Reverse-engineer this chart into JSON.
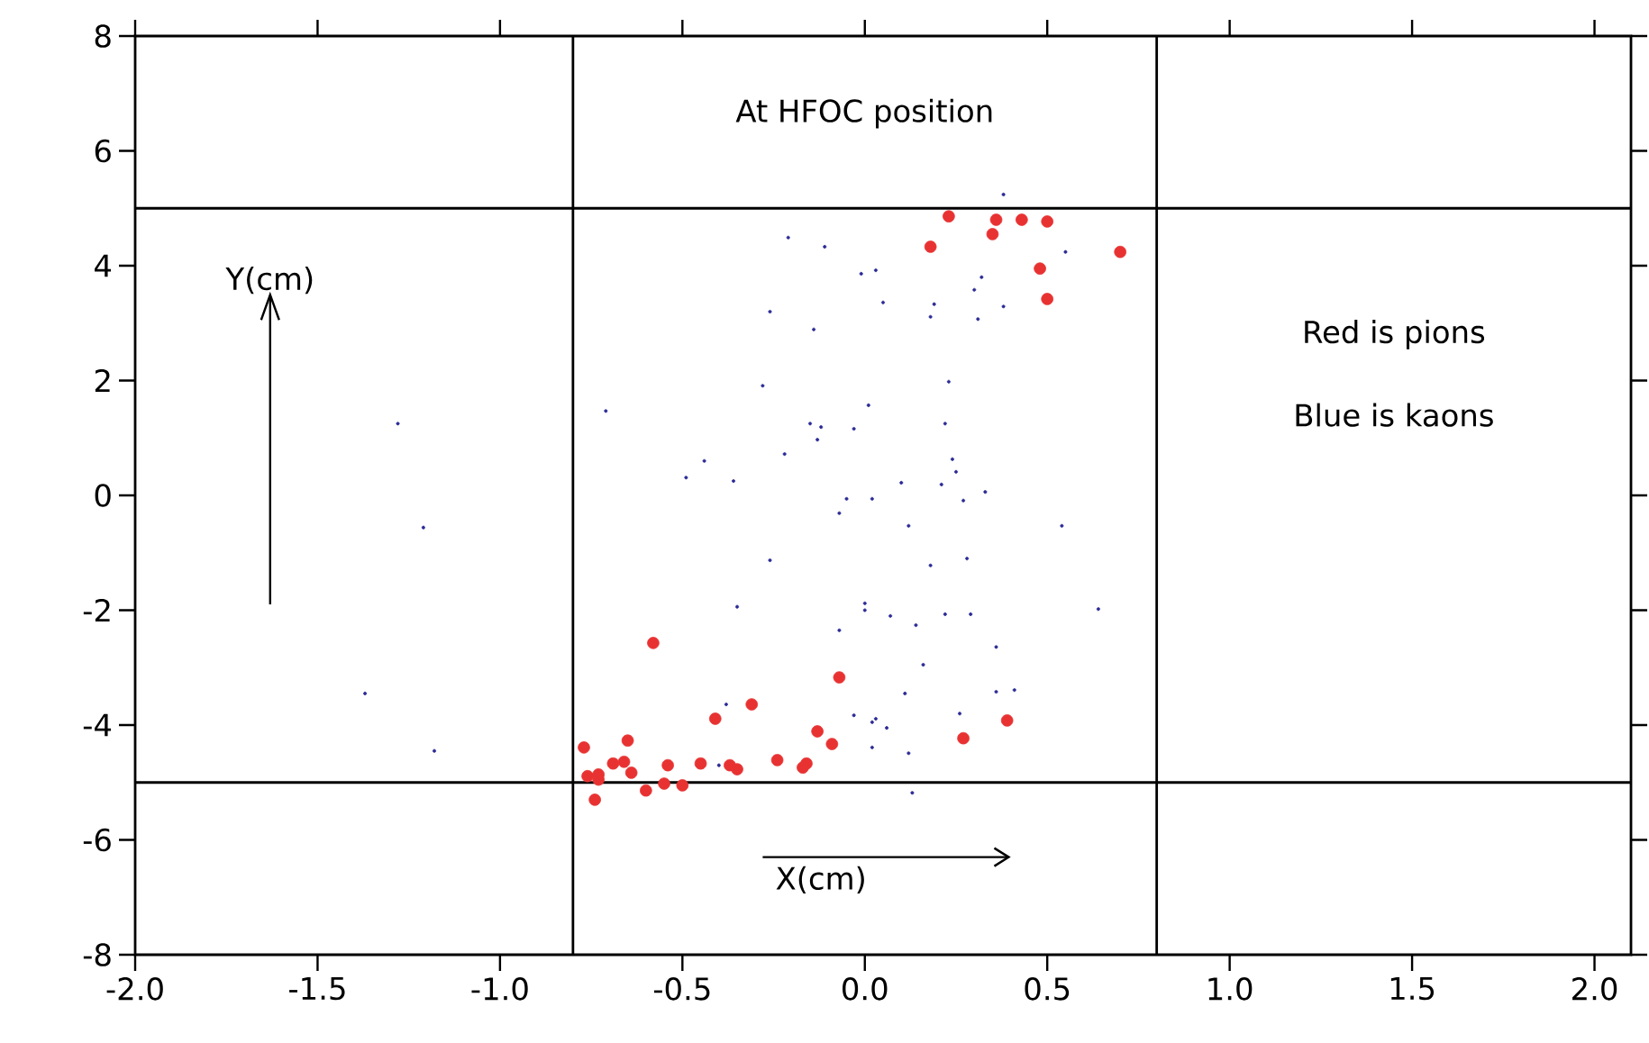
{
  "chart_data": {
    "type": "scatter",
    "title": "At HFOC position",
    "xlabel": "X(cm)",
    "ylabel": "Y(cm)",
    "annotations": [
      "Red is pions",
      "Blue is kaons"
    ],
    "xlim": [
      -2.0,
      2.1
    ],
    "ylim": [
      -8,
      8
    ],
    "xticks": [
      {
        "value": -2.0,
        "label": "-2.0"
      },
      {
        "value": -1.5,
        "label": "-1.5"
      },
      {
        "value": -1.0,
        "label": "-1.0"
      },
      {
        "value": -0.5,
        "label": "-0.5"
      },
      {
        "value": 0.0,
        "label": "0.0"
      },
      {
        "value": 0.5,
        "label": "0.5"
      },
      {
        "value": 1.0,
        "label": "1.0"
      },
      {
        "value": 1.5,
        "label": "1.5"
      },
      {
        "value": 2.0,
        "label": "2.0"
      }
    ],
    "yticks": [
      -8,
      -6,
      -4,
      -2,
      0,
      2,
      4,
      6,
      8
    ],
    "marker": "circle",
    "grid": false,
    "ref_lines": [
      {
        "axis": "x",
        "value": -0.8,
        "color": "#000000"
      },
      {
        "axis": "x",
        "value": 0.8,
        "color": "#000000"
      },
      {
        "axis": "y",
        "value": 5,
        "color": "#000000"
      },
      {
        "axis": "y",
        "value": -5,
        "color": "#000000"
      }
    ],
    "series": [
      {
        "color": "#e83232",
        "x": [
          0.23,
          0.36,
          0.35,
          0.43,
          0.5,
          0.18,
          0.7,
          0.48,
          0.5,
          -0.58,
          -0.07,
          -0.31,
          -0.41,
          0.39,
          -0.13,
          -0.09,
          0.27,
          -0.77,
          -0.65,
          -0.24,
          -0.16,
          -0.17,
          -0.45,
          -0.37,
          -0.35,
          -0.54,
          -0.69,
          -0.66,
          -0.64,
          -0.73,
          -0.76,
          -0.73,
          -0.55,
          -0.5,
          -0.6,
          -0.74
        ],
        "values": [
          4.86,
          4.8,
          4.55,
          4.8,
          4.77,
          4.33,
          4.24,
          3.95,
          3.42,
          -2.57,
          -3.17,
          -3.64,
          -3.89,
          -3.92,
          -4.11,
          -4.33,
          -4.23,
          -4.39,
          -4.27,
          -4.61,
          -4.67,
          -4.74,
          -4.67,
          -4.7,
          -4.77,
          -4.7,
          -4.67,
          -4.64,
          -4.83,
          -4.86,
          -4.89,
          -4.95,
          -5.02,
          -5.05,
          -5.14,
          -5.3
        ]
      },
      {
        "color": "#2a2a96",
        "x": [
          0.38,
          -0.21,
          -0.11,
          0.55,
          -0.01,
          0.03,
          0.32,
          0.3,
          -0.26,
          0.05,
          0.19,
          0.18,
          0.31,
          0.38,
          -0.14,
          0.23,
          -0.28,
          -0.71,
          0.01,
          -0.15,
          -0.12,
          -0.03,
          0.22,
          -0.13,
          -0.22,
          -0.44,
          -0.49,
          -0.36,
          0.1,
          0.21,
          0.24,
          0.25,
          0.33,
          0.27,
          -0.05,
          0.02,
          -0.07,
          0.12,
          0.54,
          -0.26,
          0.28,
          0.18,
          -0.35,
          0.0,
          0.0,
          0.07,
          0.14,
          0.22,
          0.29,
          0.64,
          -0.07,
          0.36,
          0.16,
          0.11,
          0.36,
          0.41,
          -0.38,
          -0.03,
          0.26,
          0.03,
          0.02,
          0.06,
          0.02,
          0.12,
          -0.4,
          0.13,
          -1.28,
          -1.21,
          -1.37,
          -1.18
        ],
        "values": [
          5.24,
          4.49,
          4.33,
          4.24,
          3.86,
          3.92,
          3.8,
          3.58,
          3.2,
          3.36,
          3.33,
          3.11,
          3.07,
          3.29,
          2.89,
          1.98,
          1.91,
          1.47,
          1.57,
          1.25,
          1.19,
          1.16,
          1.25,
          0.97,
          0.72,
          0.6,
          0.31,
          0.25,
          0.22,
          0.19,
          0.63,
          0.41,
          0.06,
          -0.09,
          -0.06,
          -0.06,
          -0.31,
          -0.53,
          -0.53,
          -1.13,
          -1.1,
          -1.22,
          -1.94,
          -1.88,
          -2.0,
          -2.1,
          -2.26,
          -2.07,
          -2.07,
          -1.98,
          -2.35,
          -2.64,
          -2.95,
          -3.45,
          -3.42,
          -3.39,
          -3.64,
          -3.83,
          -3.8,
          -3.89,
          -3.95,
          -4.05,
          -4.39,
          -4.49,
          -4.7,
          -5.18,
          1.25,
          -0.56,
          -3.45,
          -4.45
        ]
      }
    ]
  }
}
